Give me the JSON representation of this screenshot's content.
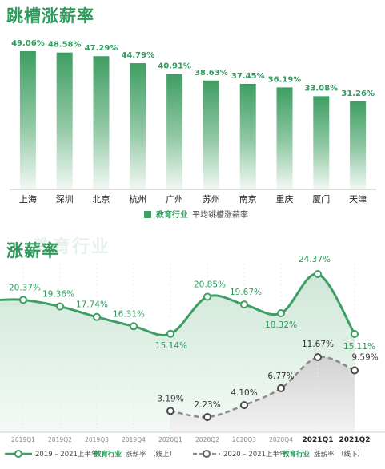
{
  "chart_data": [
    {
      "type": "bar",
      "title": "跳槽涨薪率",
      "watermark": "",
      "categories": [
        "上海",
        "深圳",
        "北京",
        "杭州",
        "广州",
        "苏州",
        "南京",
        "重庆",
        "厦门",
        "天津"
      ],
      "series": [
        {
          "name": "教育行业 平均跳槽涨薪率",
          "values": [
            49.06,
            48.58,
            47.29,
            44.79,
            40.91,
            38.63,
            37.45,
            36.19,
            33.08,
            31.26
          ],
          "labels": [
            "49.06%",
            "48.58%",
            "47.29%",
            "44.79%",
            "40.91%",
            "38.63%",
            "37.45%",
            "36.19%",
            "33.08%",
            "31.26%"
          ]
        }
      ],
      "ylim": [
        0,
        52
      ],
      "legend": {
        "label_bold": "教育行业",
        "label_rest": "平均跳槽涨薪率",
        "placement": "bottom-center"
      },
      "colors": {
        "bar_top": "#3f9e63",
        "bar_bottom": "#f1f8f3",
        "text": "#2e9b5c"
      }
    },
    {
      "type": "line",
      "title": "涨薪率",
      "watermark": "教育行业",
      "categories": [
        "2019Q1",
        "2019Q2",
        "2019Q3",
        "2019Q4",
        "2020Q1",
        "2020Q2",
        "2020Q3",
        "2020Q4",
        "2021Q1",
        "2021Q2"
      ],
      "series": [
        {
          "name": "2019 – 2021上半年 教育行业 涨薪率（线上）",
          "values": [
            20.37,
            19.36,
            17.74,
            16.31,
            15.14,
            20.85,
            19.67,
            18.32,
            24.37,
            15.11
          ],
          "labels": [
            "20.37%",
            "19.36%",
            "17.74%",
            "16.31%",
            "15.14%",
            "20.85%",
            "19.67%",
            "18.32%",
            "24.37%",
            "15.11%"
          ]
        },
        {
          "name": "2020 – 2021上半年 教育行业 涨薪率（线下）",
          "values": [
            null,
            null,
            null,
            null,
            3.19,
            2.23,
            4.1,
            6.77,
            11.67,
            9.59
          ],
          "labels": [
            "",
            "",
            "",
            "",
            "3.19%",
            "2.23%",
            "4.10%",
            "6.77%",
            "11.67%",
            "9.59%"
          ]
        }
      ],
      "legend": {
        "s1": {
          "a": "2019 – 2021上半年",
          "b": "教育行业",
          "c": "涨薪率",
          "d": "（线上）"
        },
        "s2": {
          "a": "2020 – 2021上半年",
          "b": "教育行业",
          "c": "涨薪率",
          "d": "（线下）"
        },
        "placement": "bottom"
      },
      "colors": {
        "line1": "#3f9e63",
        "area1": "#dceee3",
        "line2": "#8a8a8a",
        "area2": "#e4e4e4",
        "text": "#2e9b5c"
      }
    }
  ]
}
